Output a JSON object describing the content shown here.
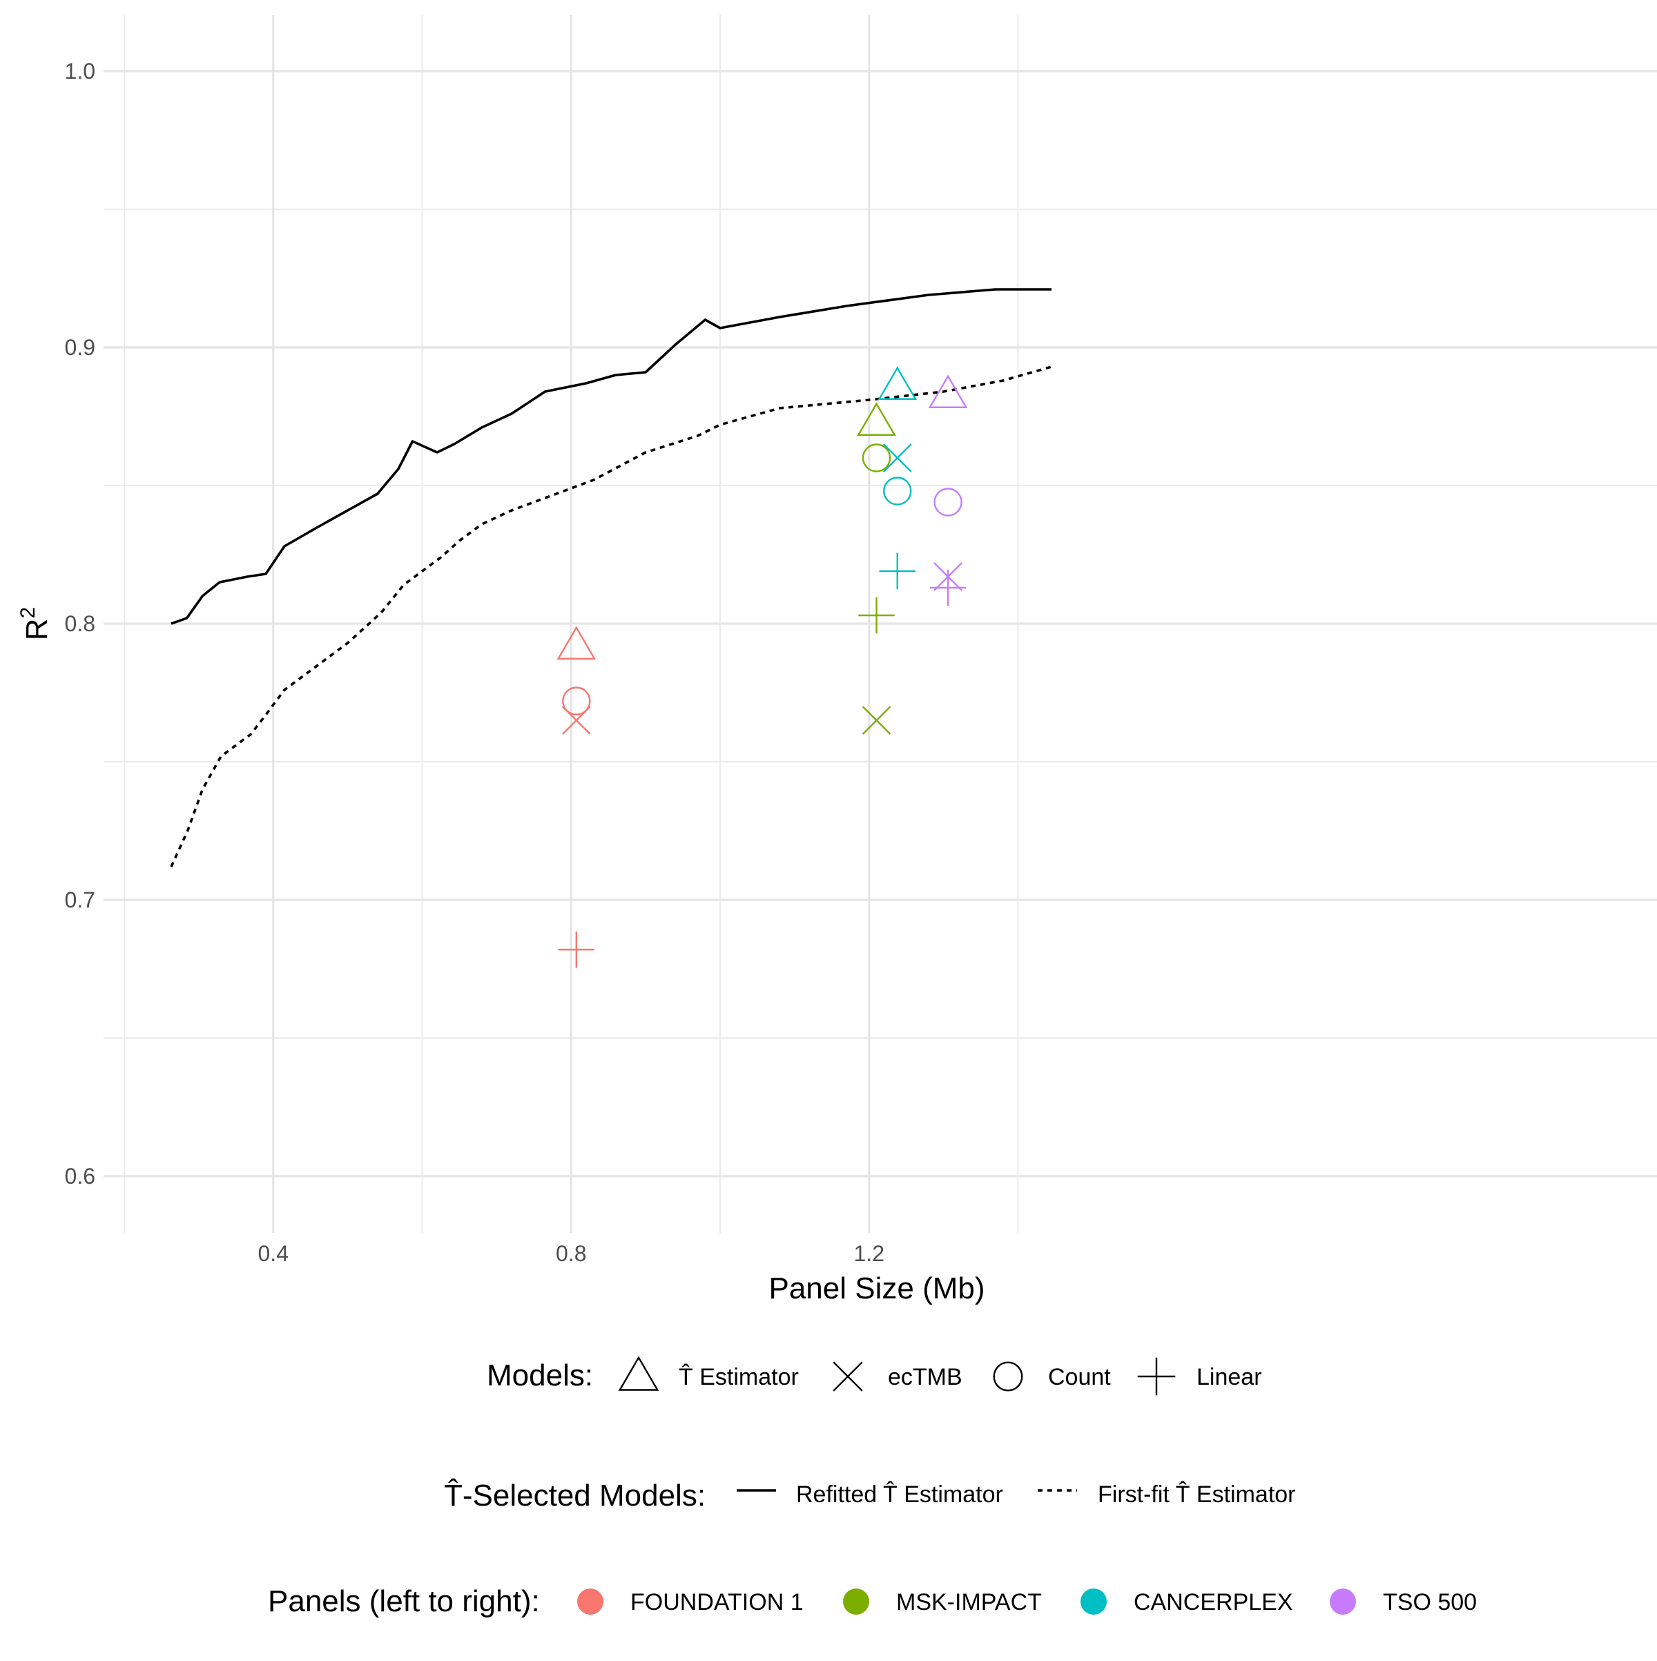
{
  "chart_data": {
    "type": "scatter",
    "xlabel": "Panel Size (Mb)",
    "ylabel": "R",
    "ylabel_superscript": "2",
    "xlim": [
      0.2,
      1.35
    ],
    "ylim": [
      0.58,
      1.02
    ],
    "x_ticks": [
      0.4,
      0.8,
      1.2
    ],
    "x_tick_labels": [
      "0.4",
      "0.8",
      "1.2"
    ],
    "x_minor_grid": [
      0.2,
      0.6,
      1.0,
      1.4
    ],
    "y_ticks": [
      0.6,
      0.7,
      0.8,
      0.9,
      1.0
    ],
    "y_tick_labels": [
      "0.6",
      "0.7",
      "0.8",
      "0.9",
      "1.0"
    ],
    "y_minor_grid": [
      0.65,
      0.75,
      0.85,
      0.95
    ],
    "grid": true,
    "lines": [
      {
        "name": "Refitted T̂ Estimator",
        "style": "solid",
        "x": [
          0.263,
          0.284,
          0.305,
          0.328,
          0.365,
          0.39,
          0.415,
          0.46,
          0.5,
          0.54,
          0.568,
          0.587,
          0.62,
          0.643,
          0.68,
          0.72,
          0.765,
          0.82,
          0.86,
          0.9,
          0.94,
          0.98,
          1.0,
          1.08,
          1.17,
          1.28,
          1.37,
          1.445
        ],
        "y": [
          0.8,
          0.802,
          0.81,
          0.815,
          0.817,
          0.818,
          0.828,
          0.835,
          0.841,
          0.847,
          0.856,
          0.866,
          0.862,
          0.865,
          0.871,
          0.876,
          0.884,
          0.887,
          0.89,
          0.891,
          0.901,
          0.91,
          0.907,
          0.911,
          0.915,
          0.919,
          0.921,
          0.921
        ]
      },
      {
        "name": "First-fit T̂ Estimator",
        "style": "dashed",
        "x": [
          0.263,
          0.285,
          0.305,
          0.33,
          0.355,
          0.37,
          0.39,
          0.415,
          0.45,
          0.5,
          0.545,
          0.575,
          0.6,
          0.625,
          0.65,
          0.68,
          0.72,
          0.76,
          0.8,
          0.83,
          0.865,
          0.9,
          0.935,
          0.97,
          1.0,
          1.08,
          1.2,
          1.3,
          1.38,
          1.445
        ],
        "y": [
          0.712,
          0.725,
          0.74,
          0.752,
          0.757,
          0.76,
          0.767,
          0.776,
          0.783,
          0.793,
          0.804,
          0.814,
          0.819,
          0.824,
          0.83,
          0.836,
          0.841,
          0.845,
          0.849,
          0.852,
          0.857,
          0.862,
          0.865,
          0.868,
          0.872,
          0.878,
          0.881,
          0.884,
          0.888,
          0.893
        ]
      }
    ],
    "points": [
      {
        "panel": "FOUNDATION 1",
        "model": "T̂ Estimator",
        "x": 0.807,
        "y": 0.792
      },
      {
        "panel": "FOUNDATION 1",
        "model": "Count",
        "x": 0.807,
        "y": 0.772
      },
      {
        "panel": "FOUNDATION 1",
        "model": "ecTMB",
        "x": 0.807,
        "y": 0.765
      },
      {
        "panel": "FOUNDATION 1",
        "model": "Linear",
        "x": 0.807,
        "y": 0.682
      },
      {
        "panel": "MSK-IMPACT",
        "model": "T̂ Estimator",
        "x": 1.21,
        "y": 0.873
      },
      {
        "panel": "MSK-IMPACT",
        "model": "Count",
        "x": 1.21,
        "y": 0.86
      },
      {
        "panel": "MSK-IMPACT",
        "model": "Linear",
        "x": 1.21,
        "y": 0.803
      },
      {
        "panel": "MSK-IMPACT",
        "model": "ecTMB",
        "x": 1.21,
        "y": 0.765
      },
      {
        "panel": "CANCERPLEX",
        "model": "T̂ Estimator",
        "x": 1.238,
        "y": 0.886
      },
      {
        "panel": "CANCERPLEX",
        "model": "ecTMB",
        "x": 1.238,
        "y": 0.86
      },
      {
        "panel": "CANCERPLEX",
        "model": "Count",
        "x": 1.238,
        "y": 0.848
      },
      {
        "panel": "CANCERPLEX",
        "model": "Linear",
        "x": 1.238,
        "y": 0.819
      },
      {
        "panel": "TSO 500",
        "model": "T̂ Estimator",
        "x": 1.306,
        "y": 0.883
      },
      {
        "panel": "TSO 500",
        "model": "Count",
        "x": 1.306,
        "y": 0.844
      },
      {
        "panel": "TSO 500",
        "model": "ecTMB",
        "x": 1.306,
        "y": 0.817
      },
      {
        "panel": "TSO 500",
        "model": "Linear",
        "x": 1.306,
        "y": 0.813
      }
    ],
    "panels": [
      {
        "name": "FOUNDATION 1",
        "color": "#F8766D"
      },
      {
        "name": "MSK-IMPACT",
        "color": "#7CAE00"
      },
      {
        "name": "CANCERPLEX",
        "color": "#00BFC4"
      },
      {
        "name": "TSO 500",
        "color": "#C77CFF"
      }
    ],
    "model_shapes": {
      "T̂ Estimator": "triangle",
      "ecTMB": "cross",
      "Count": "circle",
      "Linear": "plus"
    }
  },
  "legends": {
    "models": {
      "title": "Models:",
      "items": [
        {
          "shape": "triangle",
          "label": "T̂ Estimator"
        },
        {
          "shape": "cross",
          "label": "ecTMB"
        },
        {
          "shape": "circle",
          "label": "Count"
        },
        {
          "shape": "plus",
          "label": "Linear"
        }
      ]
    },
    "selected": {
      "title": "T̂-Selected Models:",
      "items": [
        {
          "style": "solid",
          "label": "Refitted T̂ Estimator"
        },
        {
          "style": "dashed",
          "label": "First-fit T̂ Estimator"
        }
      ]
    },
    "panels": {
      "title": "Panels (left to right):",
      "items": [
        "FOUNDATION 1",
        "MSK-IMPACT",
        "CANCERPLEX",
        "TSO 500"
      ]
    }
  }
}
